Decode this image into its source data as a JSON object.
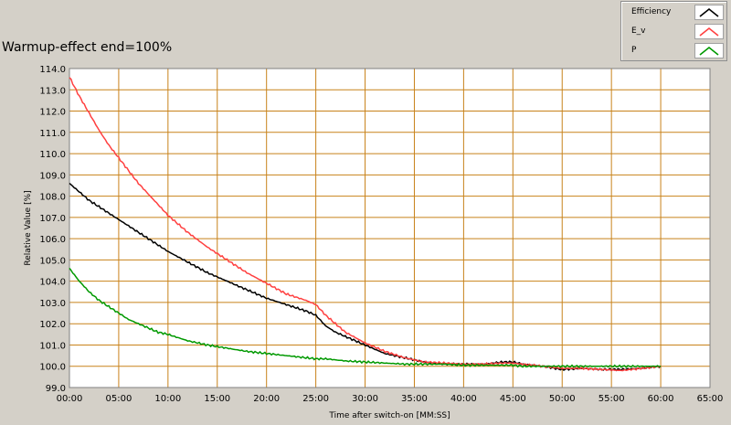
{
  "chart_title": "Warmup-effect end=100%",
  "legend": {
    "placement": "top-right",
    "items": [
      {
        "label": "Efficiency",
        "color": "#000000"
      },
      {
        "label": "E_v",
        "color": "#ff4040"
      },
      {
        "label": "P",
        "color": "#009900"
      }
    ]
  },
  "colors": {
    "plot_background": "#ffffff",
    "grid": "#c8821a",
    "panel_background": "#d4d0c8"
  },
  "chart_data": {
    "type": "line",
    "title": "Warmup-effect end=100%",
    "xlabel": "Time after switch-on [MM:SS]",
    "ylabel": "Relative Value [%]",
    "xlim": [
      0,
      65
    ],
    "ylim": [
      99.0,
      114.0
    ],
    "grid": true,
    "x_ticks": [
      {
        "value": 0,
        "label": "00:00"
      },
      {
        "value": 5,
        "label": "05:00"
      },
      {
        "value": 10,
        "label": "10:00"
      },
      {
        "value": 15,
        "label": "15:00"
      },
      {
        "value": 20,
        "label": "20:00"
      },
      {
        "value": 25,
        "label": "25:00"
      },
      {
        "value": 30,
        "label": "30:00"
      },
      {
        "value": 35,
        "label": "35:00"
      },
      {
        "value": 40,
        "label": "40:00"
      },
      {
        "value": 45,
        "label": "45:00"
      },
      {
        "value": 50,
        "label": "50:00"
      },
      {
        "value": 55,
        "label": "55:00"
      },
      {
        "value": 60,
        "label": "60:00"
      },
      {
        "value": 65,
        "label": "65:00"
      }
    ],
    "y_ticks": [
      {
        "value": 99,
        "label": "99.0"
      },
      {
        "value": 100,
        "label": "100.0"
      },
      {
        "value": 101,
        "label": "101.0"
      },
      {
        "value": 102,
        "label": "102.0"
      },
      {
        "value": 103,
        "label": "103.0"
      },
      {
        "value": 104,
        "label": "104.0"
      },
      {
        "value": 105,
        "label": "105.0"
      },
      {
        "value": 106,
        "label": "106.0"
      },
      {
        "value": 107,
        "label": "107.0"
      },
      {
        "value": 108,
        "label": "108.0"
      },
      {
        "value": 109,
        "label": "109.0"
      },
      {
        "value": 110,
        "label": "110.0"
      },
      {
        "value": 111,
        "label": "111.0"
      },
      {
        "value": 112,
        "label": "112.0"
      },
      {
        "value": 113,
        "label": "113.0"
      },
      {
        "value": 114,
        "label": "114.0"
      }
    ],
    "series": [
      {
        "name": "Efficiency",
        "color": "#000000",
        "x": [
          0,
          1,
          2,
          3,
          4,
          5,
          6,
          7,
          8,
          9,
          10,
          12,
          14,
          16,
          18,
          20,
          22,
          24,
          25,
          26,
          27,
          28,
          30,
          32,
          34,
          36,
          38,
          40,
          42,
          44,
          45,
          46,
          48,
          50,
          52,
          54,
          56,
          58,
          60
        ],
        "y": [
          108.6,
          108.2,
          107.8,
          107.5,
          107.2,
          106.9,
          106.6,
          106.3,
          106.0,
          105.7,
          105.4,
          104.9,
          104.4,
          104.0,
          103.6,
          103.2,
          102.9,
          102.6,
          102.4,
          101.9,
          101.6,
          101.4,
          101.0,
          100.6,
          100.4,
          100.2,
          100.1,
          100.1,
          100.1,
          100.2,
          100.2,
          100.1,
          100.0,
          99.85,
          99.9,
          99.85,
          99.85,
          99.9,
          100.0
        ]
      },
      {
        "name": "E_v",
        "color": "#ff4040",
        "x": [
          0,
          1,
          2,
          3,
          4,
          5,
          6,
          7,
          8,
          9,
          10,
          12,
          14,
          16,
          18,
          20,
          22,
          24,
          25,
          26,
          27,
          28,
          30,
          32,
          34,
          36,
          38,
          40,
          42,
          44,
          45,
          46,
          48,
          50,
          52,
          54,
          56,
          58,
          60
        ],
        "y": [
          113.6,
          112.7,
          111.9,
          111.1,
          110.4,
          109.8,
          109.2,
          108.6,
          108.1,
          107.6,
          107.1,
          106.3,
          105.6,
          105.0,
          104.4,
          103.9,
          103.4,
          103.1,
          102.9,
          102.4,
          102.0,
          101.6,
          101.1,
          100.7,
          100.4,
          100.2,
          100.15,
          100.1,
          100.1,
          100.15,
          100.15,
          100.1,
          100.0,
          99.9,
          99.9,
          99.85,
          99.8,
          99.9,
          100.0
        ]
      },
      {
        "name": "P",
        "color": "#009900",
        "x": [
          0,
          1,
          2,
          3,
          4,
          5,
          6,
          7,
          8,
          9,
          10,
          12,
          14,
          16,
          18,
          20,
          22,
          24,
          25,
          26,
          27,
          28,
          30,
          32,
          34,
          36,
          38,
          40,
          42,
          44,
          45,
          46,
          48,
          50,
          52,
          54,
          56,
          58,
          60
        ],
        "y": [
          104.6,
          104.0,
          103.5,
          103.1,
          102.8,
          102.5,
          102.2,
          102.0,
          101.8,
          101.6,
          101.5,
          101.2,
          101.0,
          100.85,
          100.7,
          100.6,
          100.5,
          100.4,
          100.35,
          100.35,
          100.3,
          100.25,
          100.2,
          100.15,
          100.1,
          100.1,
          100.1,
          100.05,
          100.05,
          100.05,
          100.05,
          100.0,
          100.0,
          100.0,
          100.0,
          100.0,
          100.0,
          100.0,
          100.0
        ]
      }
    ]
  }
}
